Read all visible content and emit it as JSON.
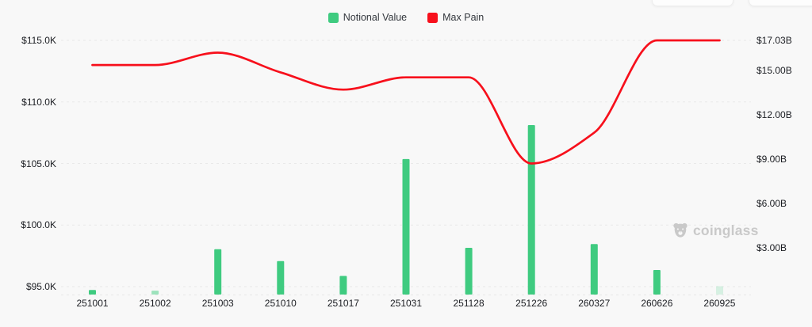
{
  "legend": {
    "items": [
      {
        "label": "Notional Value",
        "color": "#3fcb80"
      },
      {
        "label": "Max Pain",
        "color": "#f7101c"
      }
    ]
  },
  "watermark": {
    "label": "coinglass"
  },
  "chart_data": {
    "type": "combo-bar-line",
    "title": "",
    "categories": [
      "251001",
      "251002",
      "251003",
      "251010",
      "251017",
      "251031",
      "251128",
      "251226",
      "260327",
      "260626",
      "260925"
    ],
    "series": [
      {
        "name": "Notional Value",
        "type": "bar",
        "y_axis": "right",
        "unit": "USD billions",
        "color": "#3fcb80",
        "values": [
          0.15,
          0.1,
          2.9,
          2.1,
          1.1,
          9.0,
          3.0,
          11.3,
          3.25,
          1.5,
          0.4
        ],
        "bar_opacity": [
          1,
          0.5,
          1,
          1,
          1,
          1,
          1,
          1,
          1,
          1,
          0.18
        ]
      },
      {
        "name": "Max Pain",
        "type": "line",
        "y_axis": "left",
        "unit": "USD thousands",
        "color": "#f7101c",
        "values": [
          113.0,
          113.0,
          114.0,
          112.4,
          111.0,
          112.0,
          112.0,
          105.0,
          107.5,
          115.0,
          115.0
        ]
      }
    ],
    "left_axis": {
      "ticks": [
        {
          "label": "$115.0K",
          "value": 115
        },
        {
          "label": "$110.0K",
          "value": 110
        },
        {
          "label": "$105.0K",
          "value": 105
        },
        {
          "label": "$100.0K",
          "value": 100
        },
        {
          "label": "$95.0K",
          "value": 95
        }
      ],
      "range_k": [
        95,
        115
      ]
    },
    "right_axis": {
      "ticks": [
        {
          "label": "$17.03B",
          "value": 17.03
        },
        {
          "label": "$15.00B",
          "value": 15
        },
        {
          "label": "$12.00B",
          "value": 12
        },
        {
          "label": "$9.00B",
          "value": 9
        },
        {
          "label": "$6.00B",
          "value": 6
        },
        {
          "label": "$3.00B",
          "value": 3
        }
      ],
      "range_b": [
        0,
        17.03
      ]
    },
    "grid": {
      "horizontal_dashed": true
    },
    "legend_position": "top-center"
  }
}
